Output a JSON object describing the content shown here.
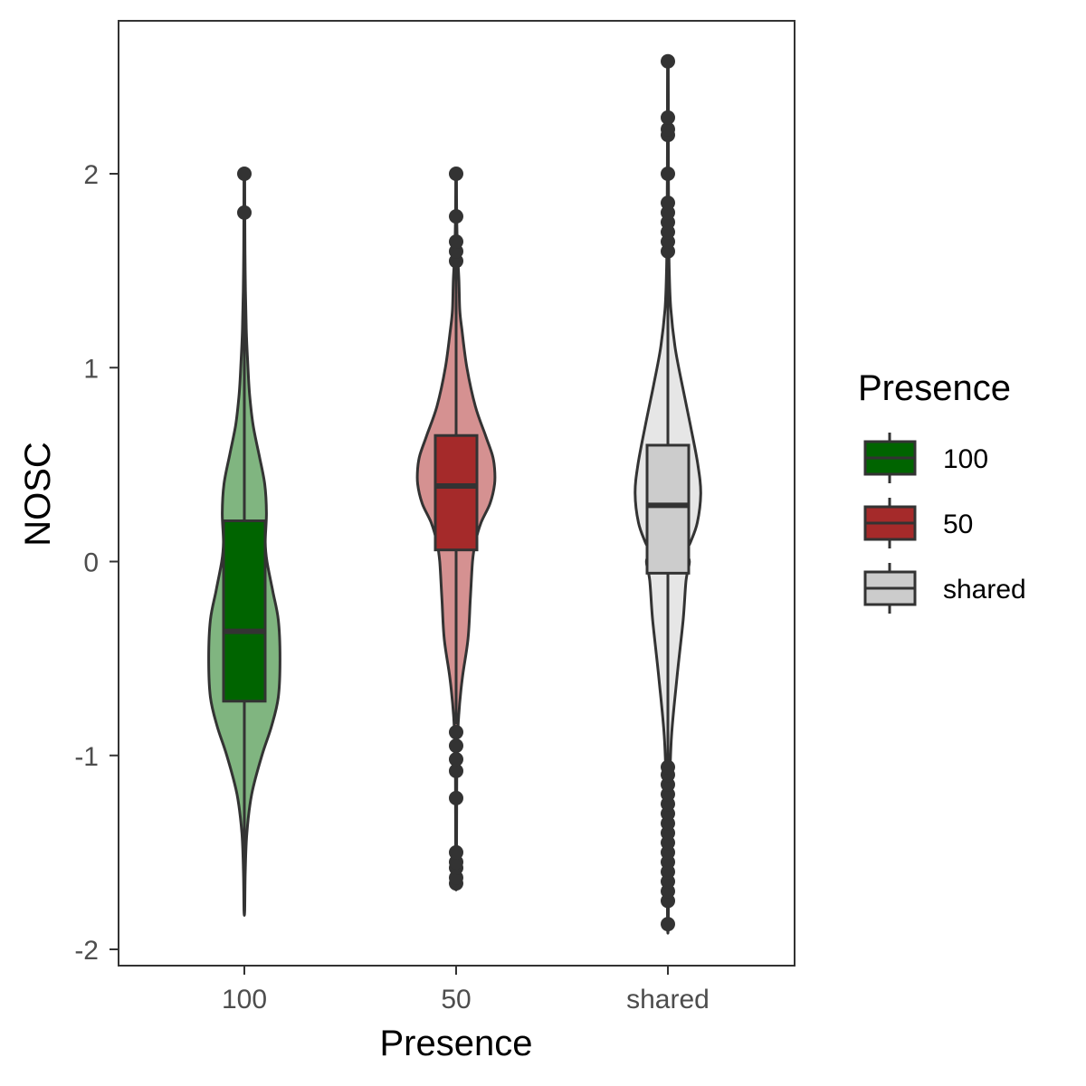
{
  "chart_data": {
    "type": "violin",
    "xlabel": "Presence",
    "ylabel": "NOSC",
    "ylim": [
      -2.1,
      2.75
    ],
    "yticks": [
      -2,
      -1,
      0,
      1,
      2
    ],
    "ytick_labels": [
      "-2",
      "-1",
      "0",
      "1",
      "2"
    ],
    "categories": [
      "100",
      "50",
      "shared"
    ],
    "legend": {
      "title": "Presence",
      "position": "right",
      "labels": [
        "100",
        "50",
        "shared"
      ]
    },
    "grid": false,
    "series": [
      {
        "category": "100",
        "violin_fill": "#80b580",
        "box_fill": "#006400",
        "box": {
          "q1": -0.72,
          "median": -0.36,
          "q3": 0.21,
          "whisker_low": -1.8,
          "whisker_high": 1.8
        },
        "density": [
          [
            -1.8,
            0.3
          ],
          [
            -1.6,
            0.8
          ],
          [
            -1.4,
            2.2
          ],
          [
            -1.2,
            6.5
          ],
          [
            -1.0,
            15.5
          ],
          [
            -0.85,
            24
          ],
          [
            -0.7,
            30
          ],
          [
            -0.5,
            31.5
          ],
          [
            -0.3,
            30
          ],
          [
            -0.15,
            25
          ],
          [
            0.0,
            20
          ],
          [
            0.1,
            18.5
          ],
          [
            0.25,
            19.5
          ],
          [
            0.4,
            18
          ],
          [
            0.55,
            13
          ],
          [
            0.7,
            7.8
          ],
          [
            0.85,
            4.8
          ],
          [
            1.0,
            3.2
          ],
          [
            1.2,
            1.7
          ],
          [
            1.5,
            0.7
          ],
          [
            1.8,
            0.4
          ],
          [
            2.0,
            0.3
          ]
        ],
        "outliers": [
          1.8,
          2.0
        ]
      },
      {
        "category": "50",
        "violin_fill": "#d59191",
        "box_fill": "#a52a2a",
        "box": {
          "q1": 0.06,
          "median": 0.39,
          "q3": 0.65,
          "whisker_low": -0.84,
          "whisker_high": 1.55
        },
        "density": [
          [
            -1.65,
            0.3
          ],
          [
            -1.3,
            0.5
          ],
          [
            -1.0,
            0.8
          ],
          [
            -0.8,
            2.2
          ],
          [
            -0.6,
            5.5
          ],
          [
            -0.4,
            10.5
          ],
          [
            -0.2,
            12.5
          ],
          [
            0.0,
            14.5
          ],
          [
            0.1,
            17
          ],
          [
            0.2,
            22
          ],
          [
            0.3,
            30
          ],
          [
            0.4,
            34
          ],
          [
            0.48,
            34
          ],
          [
            0.55,
            32
          ],
          [
            0.65,
            26
          ],
          [
            0.8,
            17
          ],
          [
            1.0,
            9.5
          ],
          [
            1.2,
            5
          ],
          [
            1.3,
            3.2
          ],
          [
            1.45,
            2.5
          ],
          [
            1.6,
            1.2
          ],
          [
            1.8,
            0.5
          ],
          [
            2.0,
            0.3
          ]
        ],
        "outliers": [
          -1.66,
          -1.63,
          -1.58,
          -1.55,
          -1.5,
          -1.22,
          -1.08,
          -1.02,
          -0.95,
          -0.88,
          1.55,
          1.6,
          1.65,
          1.78,
          2.0
        ]
      },
      {
        "category": "shared",
        "violin_fill": "#e6e6e6",
        "box_fill": "#cccccc",
        "box": {
          "q1": -0.06,
          "median": 0.29,
          "q3": 0.6,
          "whisker_low": -1.05,
          "whisker_high": 1.58
        },
        "density": [
          [
            -1.87,
            0.3
          ],
          [
            -1.5,
            0.8
          ],
          [
            -1.2,
            1.4
          ],
          [
            -0.9,
            3.2
          ],
          [
            -0.6,
            8
          ],
          [
            -0.3,
            13.5
          ],
          [
            -0.1,
            16
          ],
          [
            0.0,
            19
          ],
          [
            0.05,
            16
          ],
          [
            0.1,
            20
          ],
          [
            0.2,
            26
          ],
          [
            0.35,
            29
          ],
          [
            0.5,
            26.5
          ],
          [
            0.7,
            20
          ],
          [
            0.9,
            13
          ],
          [
            1.1,
            6.5
          ],
          [
            1.3,
            2.6
          ],
          [
            1.5,
            1.2
          ],
          [
            1.7,
            0.8
          ],
          [
            2.0,
            0.5
          ],
          [
            2.3,
            0.4
          ],
          [
            2.57,
            0.3
          ]
        ],
        "outliers": [
          -1.87,
          -1.75,
          -1.7,
          -1.65,
          -1.6,
          -1.55,
          -1.5,
          -1.45,
          -1.4,
          -1.35,
          -1.3,
          -1.25,
          -1.2,
          -1.15,
          -1.1,
          -1.06,
          1.6,
          1.65,
          1.7,
          1.75,
          1.8,
          1.85,
          2.0,
          2.2,
          2.23,
          2.29,
          2.58
        ]
      }
    ]
  }
}
